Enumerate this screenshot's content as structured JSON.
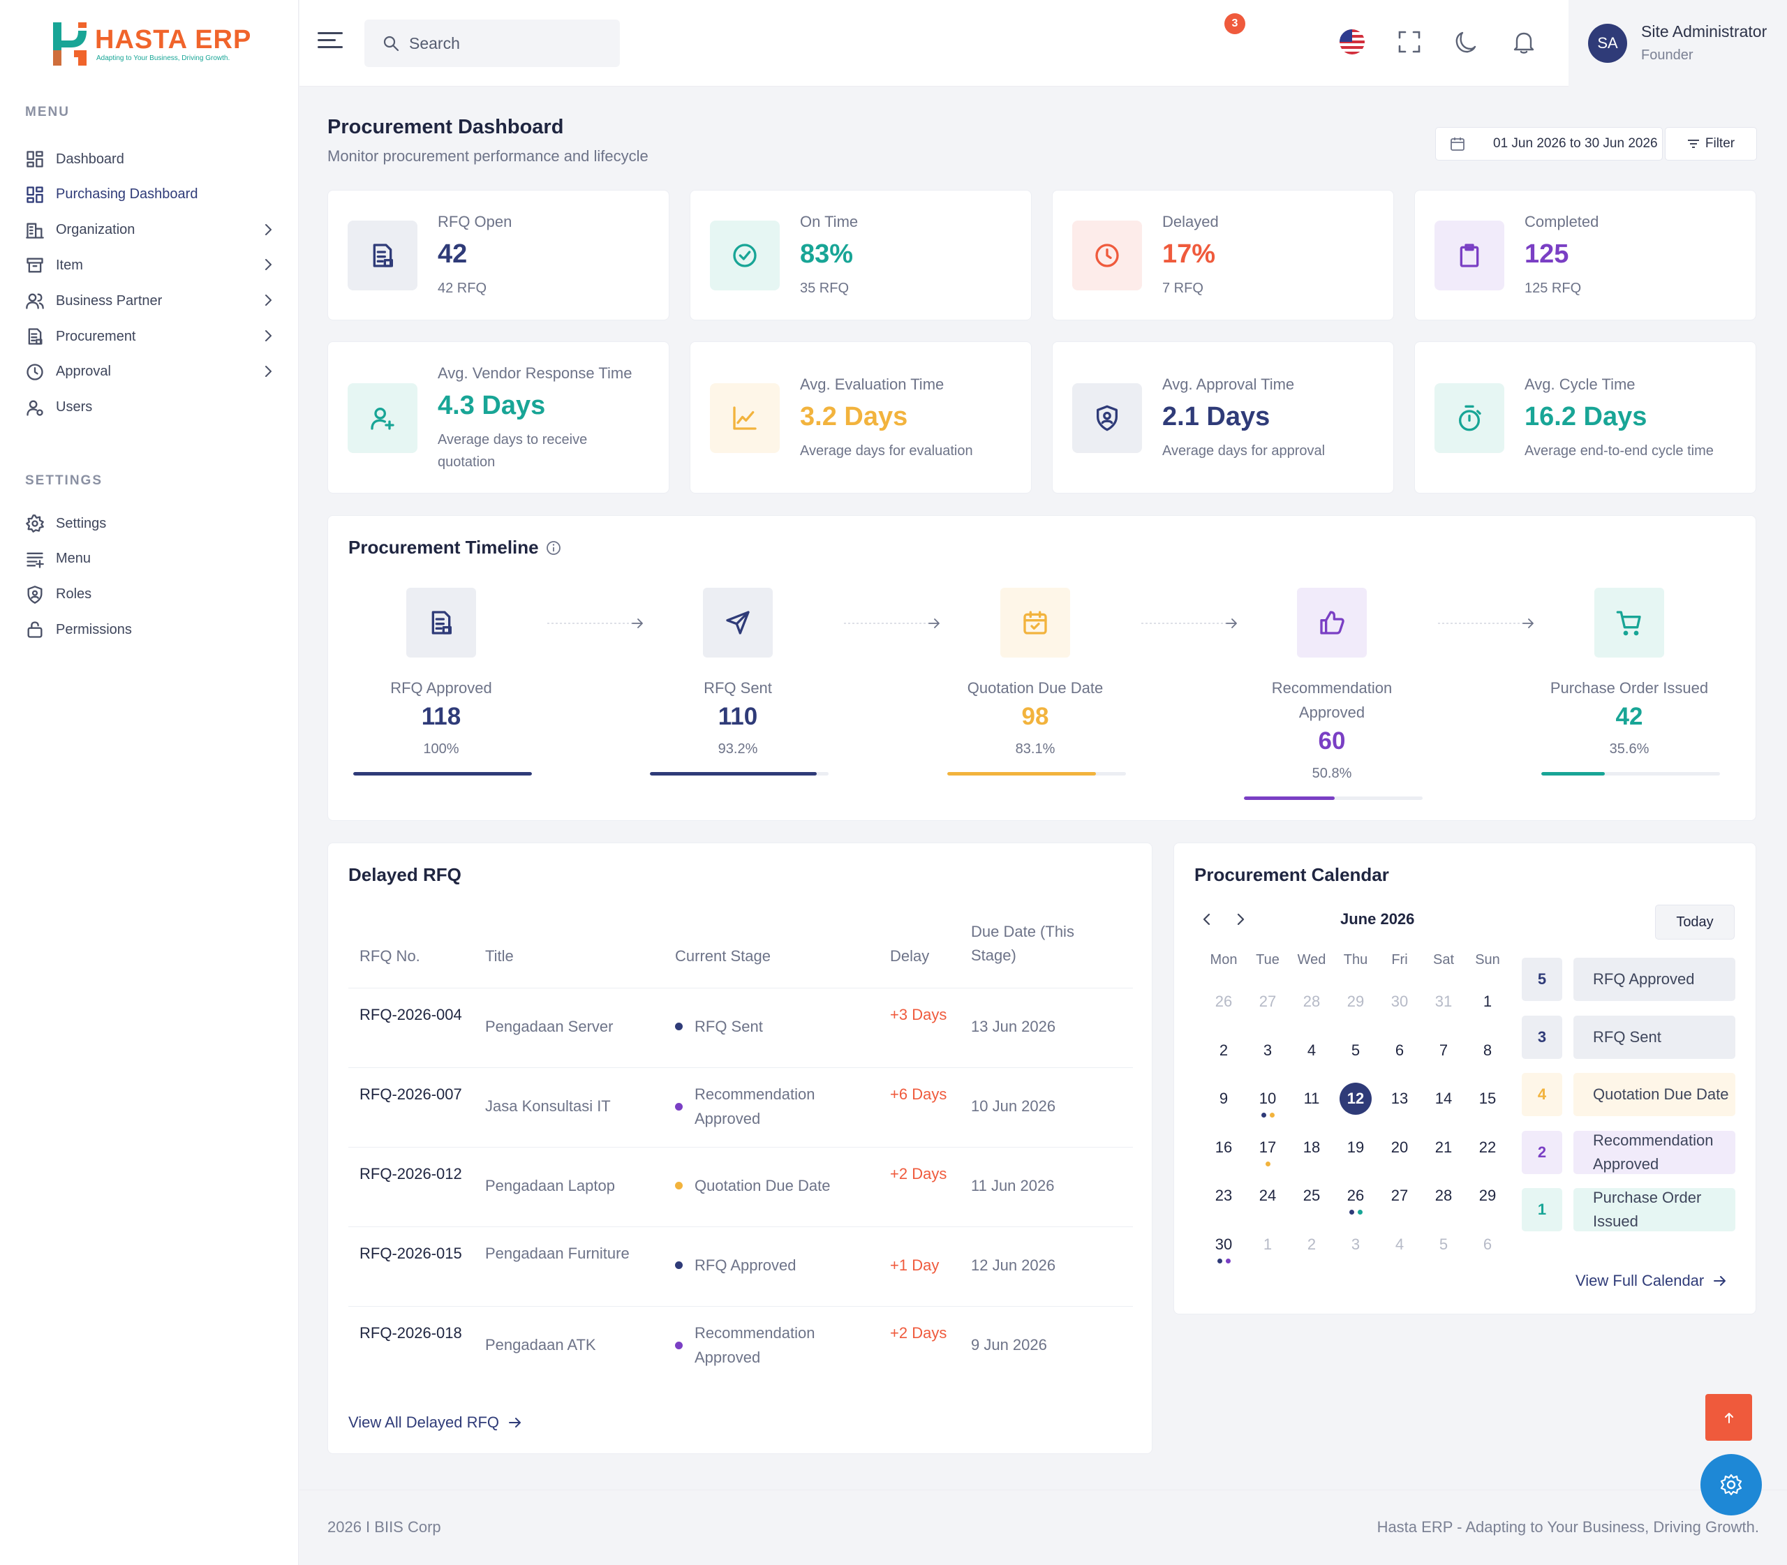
{
  "brand": {
    "name": "HASTA ERP",
    "tagline": "Adapting to Your Business, Driving Growth."
  },
  "sidebar": {
    "menu_title": "MENU",
    "menu_items": [
      {
        "label": "Dashboard",
        "icon": "grid-icon"
      },
      {
        "label": "Purchasing Dashboard",
        "icon": "grid-icon",
        "active": true
      },
      {
        "label": "Organization",
        "icon": "building-icon",
        "has_children": true
      },
      {
        "label": "Item",
        "icon": "box-icon",
        "has_children": true
      },
      {
        "label": "Business Partner",
        "icon": "users-icon",
        "has_children": true
      },
      {
        "label": "Procurement",
        "icon": "document-icon",
        "has_children": true
      },
      {
        "label": "Approval",
        "icon": "clock-icon",
        "has_children": true
      },
      {
        "label": "Users",
        "icon": "user-gear-icon"
      }
    ],
    "settings_title": "SETTINGS",
    "settings_items": [
      {
        "label": "Settings",
        "icon": "gear-icon"
      },
      {
        "label": "Menu",
        "icon": "menu-list-icon"
      },
      {
        "label": "Roles",
        "icon": "shield-user-icon"
      },
      {
        "label": "Permissions",
        "icon": "lock-icon"
      }
    ]
  },
  "header": {
    "search_placeholder": "Search",
    "notification_count": "3",
    "user": {
      "initials": "SA",
      "name": "Site Administrator",
      "role": "Founder"
    }
  },
  "page": {
    "title": "Procurement Dashboard",
    "subtitle": "Monitor procurement performance and lifecycle",
    "date_range": "01 Jun 2026 to 30 Jun 2026",
    "filter_label": "Filter"
  },
  "kpis": [
    {
      "label": "RFQ Open",
      "value": "42",
      "sub": "42 RFQ",
      "color": "#2f3b78",
      "bg": "#eceef3",
      "icon": "document-icon"
    },
    {
      "label": "On Time",
      "value": "83%",
      "sub": "35 RFQ",
      "color": "#18a596",
      "bg": "#e6f6f3",
      "icon": "check-circle-icon"
    },
    {
      "label": "Delayed",
      "value": "17%",
      "sub": "7 RFQ",
      "color": "#ef5a3c",
      "bg": "#fdecea",
      "icon": "clock-icon"
    },
    {
      "label": "Completed",
      "value": "125",
      "sub": "125 RFQ",
      "color": "#7a3fc4",
      "bg": "#f1ebfa",
      "icon": "clipboard-icon"
    }
  ],
  "times": [
    {
      "label": "Avg. Vendor Response Time",
      "value": "4.3 Days",
      "sub": "Average days to receive quotation",
      "color": "#18a596",
      "bg": "#e6f6f3",
      "icon": "user-plus-icon"
    },
    {
      "label": "Avg. Evaluation Time",
      "value": "3.2 Days",
      "sub": "Average days for evaluation",
      "color": "#f2b33d",
      "bg": "#fef6e8",
      "icon": "chart-line-icon"
    },
    {
      "label": "Avg. Approval Time",
      "value": "2.1 Days",
      "sub": "Average days for approval",
      "color": "#2f3b78",
      "bg": "#eceef3",
      "icon": "shield-user-icon"
    },
    {
      "label": "Avg. Cycle Time",
      "value": "16.2 Days",
      "sub": "Average end-to-end cycle time",
      "color": "#18a596",
      "bg": "#e6f6f3",
      "icon": "stopwatch-icon"
    }
  ],
  "timeline": {
    "title": "Procurement Timeline",
    "steps": [
      {
        "label": "RFQ Approved",
        "value": "118",
        "pct": "100%",
        "fill": 1.0,
        "color": "#2f3b78",
        "bg": "#eceef3",
        "icon": "document-icon"
      },
      {
        "label": "RFQ Sent",
        "value": "110",
        "pct": "93.2%",
        "fill": 0.932,
        "color": "#2f3b78",
        "bg": "#eceef3",
        "icon": "send-icon"
      },
      {
        "label": "Quotation Due Date",
        "value": "98",
        "pct": "83.1%",
        "fill": 0.831,
        "color": "#f2b33d",
        "bg": "#fef6e8",
        "icon": "calendar-check-icon"
      },
      {
        "label": "Recommendation Approved",
        "value": "60",
        "pct": "50.8%",
        "fill": 0.508,
        "color": "#7a3fc4",
        "bg": "#f1ebfa",
        "icon": "thumbs-up-icon"
      },
      {
        "label": "Purchase Order Issued",
        "value": "42",
        "pct": "35.6%",
        "fill": 0.356,
        "color": "#18a596",
        "bg": "#e6f6f3",
        "icon": "cart-icon"
      }
    ]
  },
  "delayed": {
    "title": "Delayed RFQ",
    "columns": [
      "RFQ No.",
      "Title",
      "Current Stage",
      "Delay",
      "Due Date (This Stage)"
    ],
    "rows": [
      {
        "no": "RFQ-2026-004",
        "title": "Pengadaan Server",
        "stage": "RFQ Sent",
        "stage_color": "#2f3b78",
        "delay": "+3 Days",
        "due": "13 Jun 2026"
      },
      {
        "no": "RFQ-2026-007",
        "title": "Jasa Konsultasi IT",
        "stage": "Recommendation Approved",
        "stage_color": "#7a3fc4",
        "delay": "+6 Days",
        "due": "10 Jun 2026"
      },
      {
        "no": "RFQ-2026-012",
        "title": "Pengadaan Laptop",
        "stage": "Quotation Due Date",
        "stage_color": "#f2b33d",
        "delay": "+2 Days",
        "due": "11 Jun 2026"
      },
      {
        "no": "RFQ-2026-015",
        "title": "Pengadaan Furniture",
        "stage": "RFQ Approved",
        "stage_color": "#2f3b78",
        "delay": "+1 Day",
        "due": "12 Jun 2026"
      },
      {
        "no": "RFQ-2026-018",
        "title": "Pengadaan ATK",
        "stage": "Recommendation Approved",
        "stage_color": "#7a3fc4",
        "delay": "+2 Days",
        "due": "9 Jun 2026"
      }
    ],
    "view_all": "View All Delayed RFQ"
  },
  "calendar": {
    "title": "Procurement Calendar",
    "month": "June 2026",
    "today_label": "Today",
    "weekdays": [
      "Mon",
      "Tue",
      "Wed",
      "Thu",
      "Fri",
      "Sat",
      "Sun"
    ],
    "weeks": [
      [
        {
          "d": "26",
          "m": true
        },
        {
          "d": "27",
          "m": true
        },
        {
          "d": "28",
          "m": true
        },
        {
          "d": "29",
          "m": true
        },
        {
          "d": "30",
          "m": true
        },
        {
          "d": "31",
          "m": true
        },
        {
          "d": "1"
        }
      ],
      [
        {
          "d": "2"
        },
        {
          "d": "3"
        },
        {
          "d": "4"
        },
        {
          "d": "5"
        },
        {
          "d": "6"
        },
        {
          "d": "7"
        },
        {
          "d": "8"
        }
      ],
      [
        {
          "d": "9"
        },
        {
          "d": "10",
          "dots": [
            "#2f3b78",
            "#f2b33d"
          ]
        },
        {
          "d": "11"
        },
        {
          "d": "12",
          "sel": true
        },
        {
          "d": "13"
        },
        {
          "d": "14"
        },
        {
          "d": "15"
        }
      ],
      [
        {
          "d": "16"
        },
        {
          "d": "17",
          "dots": [
            "#f2b33d"
          ]
        },
        {
          "d": "18"
        },
        {
          "d": "19"
        },
        {
          "d": "20"
        },
        {
          "d": "21"
        },
        {
          "d": "22"
        }
      ],
      [
        {
          "d": "23"
        },
        {
          "d": "24"
        },
        {
          "d": "25"
        },
        {
          "d": "26",
          "dots": [
            "#2f3b78",
            "#18a596"
          ]
        },
        {
          "d": "27"
        },
        {
          "d": "28"
        },
        {
          "d": "29"
        }
      ],
      [
        {
          "d": "30",
          "dots": [
            "#2f3b78",
            "#7a3fc4"
          ]
        },
        {
          "d": "1",
          "m": true
        },
        {
          "d": "2",
          "m": true
        },
        {
          "d": "3",
          "m": true
        },
        {
          "d": "4",
          "m": true
        },
        {
          "d": "5",
          "m": true
        },
        {
          "d": "6",
          "m": true
        }
      ]
    ],
    "legend": [
      {
        "count": "5",
        "label": "RFQ Approved",
        "color": "#2f3b78",
        "bg": "#eceef3"
      },
      {
        "count": "3",
        "label": "RFQ Sent",
        "color": "#2f3b78",
        "bg": "#eceef3"
      },
      {
        "count": "4",
        "label": "Quotation Due Date",
        "color": "#f2b33d",
        "bg": "#fef6e8"
      },
      {
        "count": "2",
        "label": "Recommendation Approved",
        "color": "#7a3fc4",
        "bg": "#f1ebfa"
      },
      {
        "count": "1",
        "label": "Purchase Order Issued",
        "color": "#18a596",
        "bg": "#e6f6f3"
      }
    ],
    "view_full": "View Full Calendar"
  },
  "footer": {
    "left": "2026 I BIIS Corp",
    "right": "Hasta ERP - Adapting to Your Business, Driving Growth."
  }
}
